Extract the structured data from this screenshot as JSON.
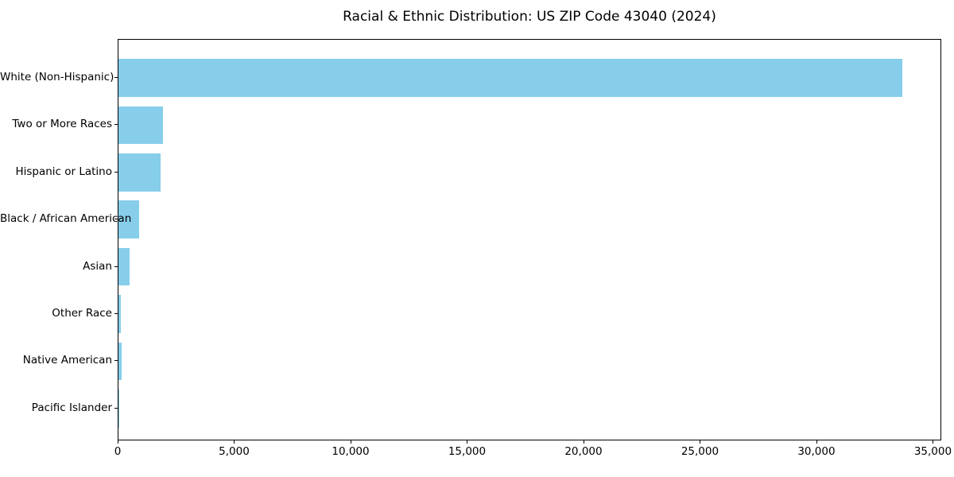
{
  "chart_data": {
    "type": "bar",
    "orientation": "horizontal",
    "title": "Racial & Ethnic Distribution: US ZIP Code 43040 (2024)",
    "categories": [
      "White (Non-Hispanic)",
      "Two or More Races",
      "Hispanic or Latino",
      "Black / African American",
      "Asian",
      "Other Race",
      "Native American",
      "Pacific Islander"
    ],
    "values": [
      33650,
      1910,
      1810,
      890,
      480,
      90,
      120,
      10
    ],
    "xlabel": "",
    "ylabel": "",
    "xlim": [
      0,
      35360
    ],
    "x_ticks": [
      0,
      5000,
      10000,
      15000,
      20000,
      25000,
      30000,
      35000
    ],
    "x_tick_labels": [
      "0",
      "5,000",
      "10,000",
      "15,000",
      "20,000",
      "25,000",
      "30,000",
      "35,000"
    ],
    "bar_color": "#87CEEB",
    "background_color": "#ffffff",
    "text_color": "#000000",
    "spine_color": "#000000",
    "grid": false,
    "legend": false
  }
}
